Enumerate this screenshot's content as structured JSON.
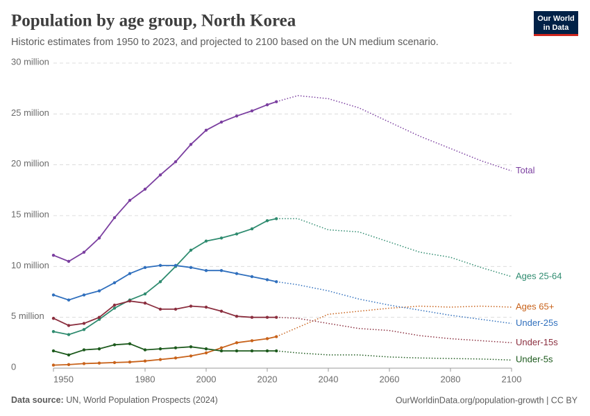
{
  "chart_data": {
    "type": "line",
    "title": "Population by age group, North Korea",
    "subtitle": "Historic estimates from 1950 to 2023, and projected to 2100 based on the UN medium scenario.",
    "logo": [
      "Our World",
      "in Data"
    ],
    "source_label": "Data source:",
    "source": "UN, World Population Prospects (2024)",
    "url": "OurWorldinData.org/population-growth | CC BY",
    "x": [
      1950,
      1955,
      1960,
      1965,
      1970,
      1975,
      1980,
      1985,
      1990,
      1995,
      2000,
      2005,
      2010,
      2015,
      2020,
      2023
    ],
    "x_projected": [
      2030,
      2040,
      2050,
      2060,
      2070,
      2080,
      2090,
      2100
    ],
    "xlim": [
      1950,
      2100
    ],
    "xticks": [
      1950,
      1980,
      2000,
      2020,
      2040,
      2060,
      2080,
      2100
    ],
    "ylim": [
      0,
      30000000
    ],
    "yticks": [
      0,
      {
        "value": 5000000,
        "label": "5 million"
      },
      {
        "value": 10000000,
        "label": "10 million"
      },
      {
        "value": 15000000,
        "label": "15 million"
      },
      {
        "value": 20000000,
        "label": "20 million"
      },
      {
        "value": 25000000,
        "label": "25 million"
      },
      {
        "value": 30000000,
        "label": "30 million"
      }
    ],
    "grid": true,
    "series": [
      {
        "name": "Total",
        "color": "#7b3fa0",
        "values": [
          11100000,
          10500000,
          11400000,
          12800000,
          14800000,
          16500000,
          17600000,
          19000000,
          20300000,
          22000000,
          23400000,
          24200000,
          24800000,
          25300000,
          25900000,
          26200000
        ],
        "projected_values": [
          26800000,
          26500000,
          25600000,
          24200000,
          22800000,
          21600000,
          20400000,
          19400000
        ]
      },
      {
        "name": "Ages 25-64",
        "color": "#2e8b6f",
        "values": [
          3600000,
          3300000,
          3800000,
          4800000,
          5900000,
          6700000,
          7300000,
          8500000,
          10000000,
          11600000,
          12500000,
          12800000,
          13200000,
          13700000,
          14500000,
          14700000
        ],
        "projected_values": [
          14700000,
          13600000,
          13400000,
          12400000,
          11400000,
          10900000,
          9900000,
          9000000
        ]
      },
      {
        "name": "Ages 65+",
        "color": "#c8621a",
        "values": [
          300000,
          350000,
          450000,
          500000,
          550000,
          600000,
          700000,
          850000,
          1000000,
          1200000,
          1500000,
          2000000,
          2500000,
          2700000,
          2900000,
          3100000
        ],
        "projected_values": [
          4000000,
          5300000,
          5600000,
          5900000,
          6100000,
          6000000,
          6100000,
          6000000
        ]
      },
      {
        "name": "Under-25s",
        "color": "#2f6fbd",
        "values": [
          7200000,
          6700000,
          7200000,
          7600000,
          8400000,
          9300000,
          9900000,
          10100000,
          10100000,
          9900000,
          9600000,
          9600000,
          9300000,
          9000000,
          8700000,
          8500000
        ],
        "projected_values": [
          8200000,
          7600000,
          6800000,
          6200000,
          5700000,
          5200000,
          4800000,
          4400000
        ]
      },
      {
        "name": "Under-15s",
        "color": "#8b2f3f",
        "values": [
          4900000,
          4200000,
          4400000,
          5000000,
          6200000,
          6600000,
          6400000,
          5800000,
          5800000,
          6100000,
          6000000,
          5600000,
          5100000,
          5000000,
          5000000,
          5000000
        ],
        "projected_values": [
          4900000,
          4400000,
          3900000,
          3700000,
          3200000,
          2900000,
          2700000,
          2500000
        ]
      },
      {
        "name": "Under-5s",
        "color": "#1d5a1d",
        "values": [
          1700000,
          1300000,
          1800000,
          1900000,
          2300000,
          2400000,
          1800000,
          1900000,
          2000000,
          2100000,
          1900000,
          1700000,
          1700000,
          1700000,
          1700000,
          1700000
        ],
        "projected_values": [
          1500000,
          1300000,
          1300000,
          1100000,
          1000000,
          950000,
          900000,
          800000
        ]
      }
    ]
  }
}
